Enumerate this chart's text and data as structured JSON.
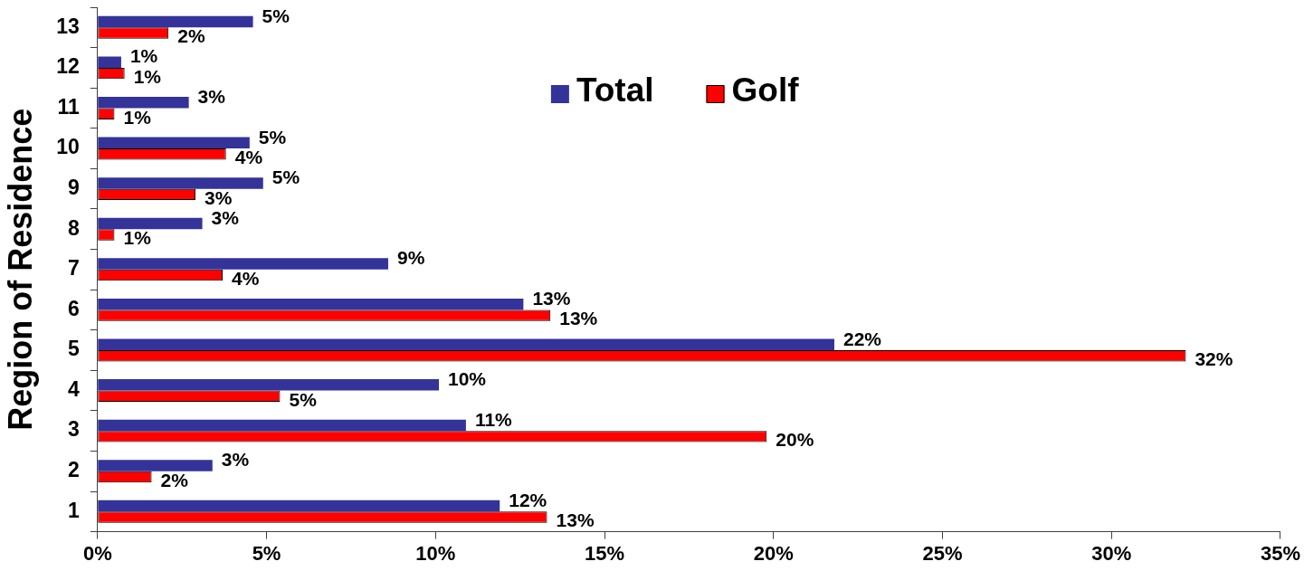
{
  "chart_data": {
    "type": "bar",
    "orientation": "horizontal",
    "ylabel": "Region of Residence",
    "categories": [
      "13",
      "12",
      "11",
      "10",
      "9",
      "8",
      "7",
      "6",
      "5",
      "4",
      "3",
      "2",
      "1"
    ],
    "series": [
      {
        "name": "Total",
        "color": "#333399",
        "values": [
          4.6,
          0.7,
          2.7,
          4.5,
          4.9,
          3.1,
          8.6,
          12.6,
          21.8,
          10.1,
          10.9,
          3.4,
          11.9
        ],
        "value_labels": [
          "5%",
          "1%",
          "3%",
          "5%",
          "5%",
          "3%",
          "9%",
          "13%",
          "22%",
          "10%",
          "11%",
          "3%",
          "12%"
        ]
      },
      {
        "name": "Golf",
        "color": "#ff0000",
        "values": [
          2.1,
          0.8,
          0.5,
          3.8,
          2.9,
          0.5,
          3.7,
          13.4,
          32.2,
          5.4,
          19.8,
          1.6,
          13.3
        ],
        "value_labels": [
          "2%",
          "1%",
          "1%",
          "4%",
          "3%",
          "1%",
          "4%",
          "13%",
          "32%",
          "5%",
          "20%",
          "2%",
          "13%"
        ]
      }
    ],
    "xlim": [
      0,
      35
    ],
    "xticks": [
      {
        "value": 0,
        "label": "0%"
      },
      {
        "value": 5,
        "label": "5%"
      },
      {
        "value": 10,
        "label": "10%"
      },
      {
        "value": 15,
        "label": "15%"
      },
      {
        "value": 20,
        "label": "20%"
      },
      {
        "value": 25,
        "label": "25%"
      },
      {
        "value": 30,
        "label": "30%"
      },
      {
        "value": 35,
        "label": "35%"
      }
    ],
    "legend": "top"
  }
}
